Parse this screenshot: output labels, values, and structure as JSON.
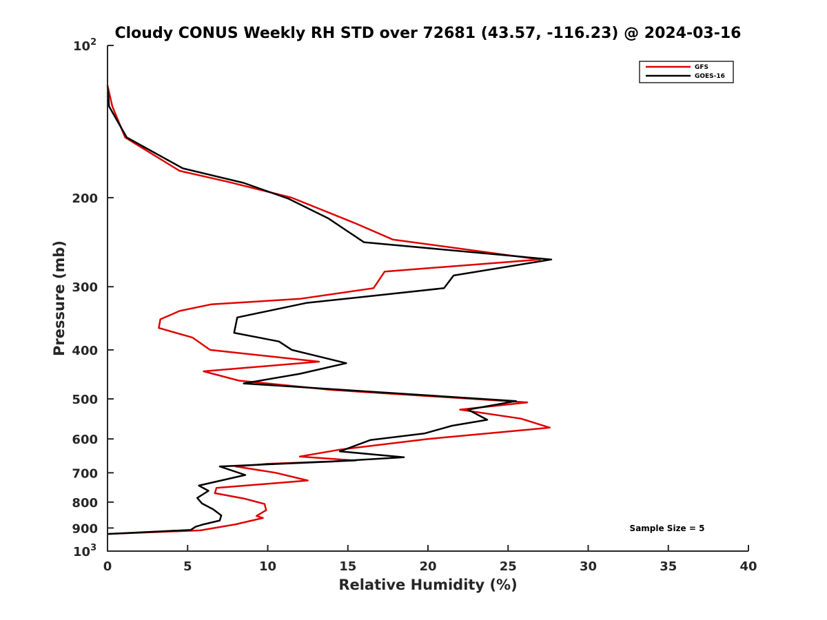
{
  "chart_data": {
    "type": "line",
    "title": "Cloudy CONUS Weekly RH STD over 72681 (43.57, -116.23) @ 2024-03-16",
    "xlabel": "Relative Humidity (%)",
    "ylabel": "Pressure (mb)",
    "xlim": [
      0,
      40
    ],
    "ylim": [
      100,
      1000
    ],
    "y_scale": "log",
    "y_reversed": true,
    "x_ticks": [
      0,
      5,
      10,
      15,
      20,
      25,
      30,
      35,
      40
    ],
    "x_tick_labels": [
      "0",
      "5",
      "10",
      "15",
      "20",
      "25",
      "30",
      "35",
      "40"
    ],
    "y_ticks": [
      100,
      200,
      300,
      400,
      500,
      600,
      700,
      800,
      900,
      1000
    ],
    "y_tick_labels": [
      {
        "base": "10",
        "exp": "2"
      },
      {
        "base": "200"
      },
      {
        "base": "300"
      },
      {
        "base": "400"
      },
      {
        "base": "500"
      },
      {
        "base": "600"
      },
      {
        "base": "700"
      },
      {
        "base": "800"
      },
      {
        "base": "900"
      },
      {
        "base": "10",
        "exp": "3"
      }
    ],
    "grid": false,
    "legend_position": "top-right",
    "annotation": "Sample Size = 5",
    "series": [
      {
        "name": "GFS",
        "color": "#e00000",
        "points": [
          [
            0.0,
            120
          ],
          [
            0.3,
            132
          ],
          [
            1.1,
            152
          ],
          [
            4.5,
            177
          ],
          [
            7.5,
            186
          ],
          [
            11.5,
            200
          ],
          [
            15.5,
            225
          ],
          [
            17.8,
            242
          ],
          [
            27.0,
            265
          ],
          [
            17.3,
            280
          ],
          [
            16.6,
            302
          ],
          [
            12.0,
            317
          ],
          [
            6.5,
            325
          ],
          [
            4.5,
            335
          ],
          [
            3.3,
            348
          ],
          [
            3.2,
            362
          ],
          [
            5.3,
            378
          ],
          [
            6.4,
            400
          ],
          [
            13.2,
            422
          ],
          [
            6.0,
            441
          ],
          [
            8.2,
            460
          ],
          [
            14.0,
            480
          ],
          [
            26.2,
            508
          ],
          [
            22.0,
            525
          ],
          [
            25.8,
            547
          ],
          [
            27.6,
            570
          ],
          [
            20.0,
            600
          ],
          [
            14.5,
            630
          ],
          [
            12.0,
            650
          ],
          [
            15.5,
            662
          ],
          [
            10.0,
            672
          ],
          [
            8.0,
            680
          ],
          [
            10.5,
            700
          ],
          [
            12.5,
            725
          ],
          [
            6.8,
            750
          ],
          [
            6.7,
            768
          ],
          [
            8.5,
            787
          ],
          [
            9.8,
            807
          ],
          [
            9.9,
            830
          ],
          [
            9.3,
            852
          ],
          [
            9.7,
            860
          ],
          [
            8.0,
            885
          ],
          [
            5.8,
            910
          ],
          [
            0.0,
            925
          ]
        ]
      },
      {
        "name": "GOES-16",
        "color": "#000000",
        "points": [
          [
            0.0,
            120
          ],
          [
            0.1,
            132
          ],
          [
            1.2,
            152
          ],
          [
            4.7,
            175
          ],
          [
            8.5,
            187
          ],
          [
            11.3,
            201
          ],
          [
            13.8,
            220
          ],
          [
            16.0,
            245
          ],
          [
            27.7,
            265
          ],
          [
            21.6,
            285
          ],
          [
            21.0,
            302
          ],
          [
            12.4,
            323
          ],
          [
            8.1,
            345
          ],
          [
            7.9,
            370
          ],
          [
            10.7,
            385
          ],
          [
            11.5,
            400
          ],
          [
            14.9,
            425
          ],
          [
            12.0,
            446
          ],
          [
            8.5,
            466
          ],
          [
            25.5,
            505
          ],
          [
            22.5,
            525
          ],
          [
            23.7,
            550
          ],
          [
            21.5,
            565
          ],
          [
            19.8,
            585
          ],
          [
            16.4,
            603
          ],
          [
            14.5,
            635
          ],
          [
            18.5,
            652
          ],
          [
            14.0,
            665
          ],
          [
            7.0,
            680
          ],
          [
            8.6,
            707
          ],
          [
            5.7,
            742
          ],
          [
            6.3,
            760
          ],
          [
            5.6,
            785
          ],
          [
            5.9,
            805
          ],
          [
            6.6,
            827
          ],
          [
            7.1,
            850
          ],
          [
            7.0,
            870
          ],
          [
            6.0,
            885
          ],
          [
            5.5,
            895
          ],
          [
            5.2,
            908
          ],
          [
            0.0,
            925
          ]
        ]
      }
    ]
  }
}
